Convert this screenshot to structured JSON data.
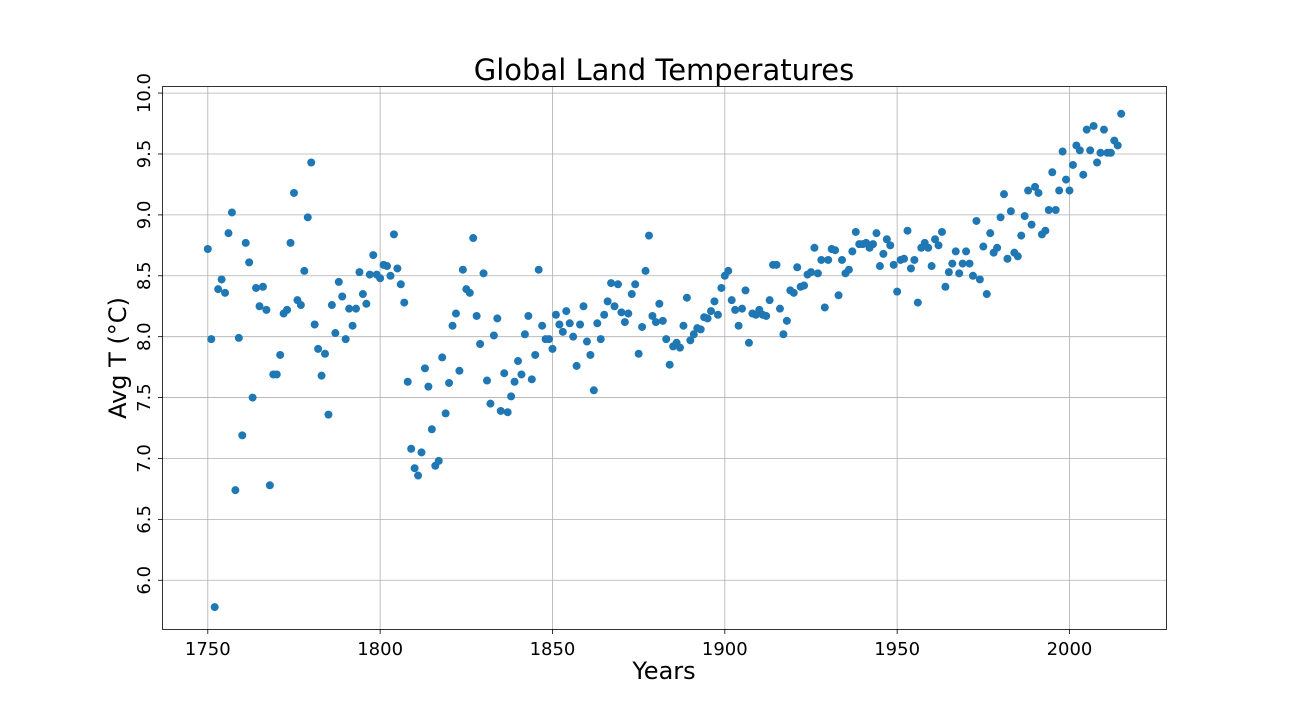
{
  "chart_data": {
    "type": "scatter",
    "title": "Global Land Temperatures",
    "xlabel": "Years",
    "ylabel": "Avg T (°C)",
    "xlim": [
      1737,
      2028
    ],
    "ylim": [
      5.6,
      10.05
    ],
    "xticks": [
      1750,
      1800,
      1850,
      1900,
      1950,
      2000
    ],
    "yticks": [
      6.0,
      6.5,
      7.0,
      7.5,
      8.0,
      8.5,
      9.0,
      9.5,
      10.0
    ],
    "xtick_labels": [
      "1750",
      "1800",
      "1850",
      "1900",
      "1950",
      "2000"
    ],
    "ytick_labels": [
      "6.0",
      "6.5",
      "7.0",
      "7.5",
      "8.0",
      "8.5",
      "9.0",
      "9.5",
      "10.0"
    ],
    "grid": true,
    "marker_color": "#1f77b4",
    "series": [
      {
        "x": [
          1750,
          1751,
          1752,
          1753,
          1754,
          1755,
          1756,
          1757,
          1758,
          1759,
          1760,
          1761,
          1762,
          1763,
          1764,
          1765,
          1766,
          1767,
          1768,
          1769,
          1770,
          1771,
          1772,
          1773,
          1774,
          1775,
          1776,
          1777,
          1778,
          1779,
          1780,
          1781,
          1782,
          1783,
          1784,
          1785,
          1786,
          1787,
          1788,
          1789,
          1790,
          1791,
          1792,
          1793,
          1794,
          1795,
          1796,
          1797,
          1798,
          1799,
          1800,
          1801,
          1802,
          1803,
          1804,
          1805,
          1806,
          1807,
          1808,
          1809,
          1810,
          1811,
          1812,
          1813,
          1814,
          1815,
          1816,
          1817,
          1818,
          1819,
          1820,
          1821,
          1822,
          1823,
          1824,
          1825,
          1826,
          1827,
          1828,
          1829,
          1830,
          1831,
          1832,
          1833,
          1834,
          1835,
          1836,
          1837,
          1838,
          1839,
          1840,
          1841,
          1842,
          1843,
          1844,
          1845,
          1846,
          1847,
          1848,
          1849,
          1850,
          1851,
          1852,
          1853,
          1854,
          1855,
          1856,
          1857,
          1858,
          1859,
          1860,
          1861,
          1862,
          1863,
          1864,
          1865,
          1866,
          1867,
          1868,
          1869,
          1870,
          1871,
          1872,
          1873,
          1874,
          1875,
          1876,
          1877,
          1878,
          1879,
          1880,
          1881,
          1882,
          1883,
          1884,
          1885,
          1886,
          1887,
          1888,
          1889,
          1890,
          1891,
          1892,
          1893,
          1894,
          1895,
          1896,
          1897,
          1898,
          1899,
          1900,
          1901,
          1902,
          1903,
          1904,
          1905,
          1906,
          1907,
          1908,
          1909,
          1910,
          1911,
          1912,
          1913,
          1914,
          1915,
          1916,
          1917,
          1918,
          1919,
          1920,
          1921,
          1922,
          1923,
          1924,
          1925,
          1926,
          1927,
          1928,
          1929,
          1930,
          1931,
          1932,
          1933,
          1934,
          1935,
          1936,
          1937,
          1938,
          1939,
          1940,
          1941,
          1942,
          1943,
          1944,
          1945,
          1946,
          1947,
          1948,
          1949,
          1950,
          1951,
          1952,
          1953,
          1954,
          1955,
          1956,
          1957,
          1958,
          1959,
          1960,
          1961,
          1962,
          1963,
          1964,
          1965,
          1966,
          1967,
          1968,
          1969,
          1970,
          1971,
          1972,
          1973,
          1974,
          1975,
          1976,
          1977,
          1978,
          1979,
          1980,
          1981,
          1982,
          1983,
          1984,
          1985,
          1986,
          1987,
          1988,
          1989,
          1990,
          1991,
          1992,
          1993,
          1994,
          1995,
          1996,
          1997,
          1998,
          1999,
          2000,
          2001,
          2002,
          2003,
          2004,
          2005,
          2006,
          2007,
          2008,
          2009,
          2010,
          2011,
          2012,
          2013,
          2014,
          2015
        ],
        "y": [
          8.72,
          7.98,
          5.78,
          8.39,
          8.47,
          8.36,
          8.85,
          9.02,
          6.74,
          7.99,
          7.19,
          8.77,
          8.61,
          7.5,
          8.4,
          8.25,
          8.41,
          8.22,
          6.78,
          7.69,
          7.69,
          7.85,
          8.19,
          8.22,
          8.77,
          9.18,
          8.3,
          8.26,
          8.54,
          8.98,
          9.43,
          8.1,
          7.9,
          7.68,
          7.86,
          7.36,
          8.26,
          8.03,
          8.45,
          8.33,
          7.98,
          8.23,
          8.09,
          8.23,
          8.53,
          8.35,
          8.27,
          8.51,
          8.67,
          8.51,
          8.48,
          8.59,
          8.58,
          8.5,
          8.84,
          8.56,
          8.43,
          8.28,
          7.63,
          7.08,
          6.92,
          6.86,
          7.05,
          7.74,
          7.59,
          7.24,
          6.94,
          6.98,
          7.83,
          7.37,
          7.62,
          8.09,
          8.19,
          7.72,
          8.55,
          8.39,
          8.36,
          8.81,
          8.17,
          7.94,
          8.52,
          7.64,
          7.45,
          8.01,
          8.15,
          7.39,
          7.7,
          7.38,
          7.51,
          7.63,
          7.8,
          7.69,
          8.02,
          8.17,
          7.65,
          7.85,
          8.55,
          8.09,
          7.98,
          7.98,
          7.9,
          8.18,
          8.1,
          8.04,
          8.21,
          8.11,
          8.0,
          7.76,
          8.1,
          8.25,
          7.96,
          7.85,
          7.56,
          8.11,
          7.98,
          8.18,
          8.29,
          8.44,
          8.25,
          8.43,
          8.2,
          8.12,
          8.19,
          8.35,
          8.43,
          7.86,
          8.08,
          8.54,
          8.83,
          8.17,
          8.12,
          8.27,
          8.13,
          7.98,
          7.77,
          7.92,
          7.95,
          7.91,
          8.09,
          8.32,
          7.97,
          8.02,
          8.07,
          8.06,
          8.16,
          8.15,
          8.21,
          8.29,
          8.18,
          8.4,
          8.5,
          8.54,
          8.3,
          8.22,
          8.09,
          8.23,
          8.38,
          7.95,
          8.19,
          8.18,
          8.22,
          8.18,
          8.17,
          8.3,
          8.59,
          8.59,
          8.23,
          8.02,
          8.13,
          8.38,
          8.36,
          8.57,
          8.41,
          8.42,
          8.51,
          8.53,
          8.73,
          8.52,
          8.63,
          8.24,
          8.63,
          8.72,
          8.71,
          8.34,
          8.63,
          8.52,
          8.55,
          8.7,
          8.86,
          8.76,
          8.76,
          8.77,
          8.73,
          8.76,
          8.85,
          8.58,
          8.68,
          8.8,
          8.75,
          8.59,
          8.37,
          8.63,
          8.64,
          8.87,
          8.56,
          8.63,
          8.28,
          8.73,
          8.77,
          8.73,
          8.58,
          8.8,
          8.75,
          8.86,
          8.41,
          8.53,
          8.6,
          8.7,
          8.52,
          8.6,
          8.7,
          8.6,
          8.5,
          8.95,
          8.47,
          8.74,
          8.35,
          8.85,
          8.69,
          8.73,
          8.98,
          9.17,
          8.64,
          9.03,
          8.69,
          8.66,
          8.83,
          8.99,
          9.2,
          8.92,
          9.23,
          9.18,
          8.84,
          8.87,
          9.04,
          9.35,
          9.04,
          9.2,
          9.52,
          9.29,
          9.2,
          9.41,
          9.57,
          9.53,
          9.33,
          9.7,
          9.53,
          9.73,
          9.43,
          9.51,
          9.7,
          9.51,
          9.51,
          9.61,
          9.57,
          9.83
        ]
      }
    ]
  }
}
